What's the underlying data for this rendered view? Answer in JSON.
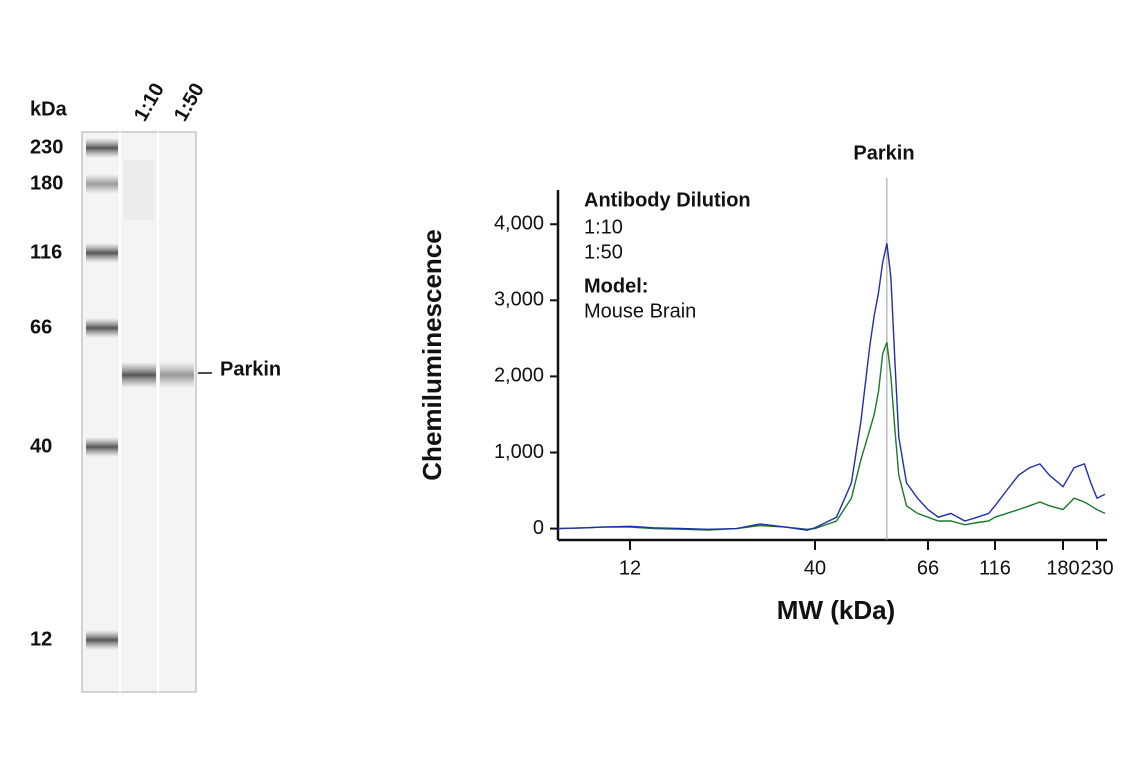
{
  "chart_data": [
    {
      "type": "gel",
      "y_label": "kDa",
      "markers": [
        230,
        180,
        116,
        66,
        40,
        12
      ],
      "lanes": [
        "1:10",
        "1:50"
      ],
      "band_label": "Parkin"
    },
    {
      "type": "line",
      "annotation": "Parkin",
      "marker_x": 55,
      "ylabel": "Chemiluminescence",
      "xlabel": "MW (kDa)",
      "legend_title": "Antibody Dilution",
      "model_label": "Model:",
      "model": "Mouse Brain",
      "x": [
        7.5,
        9,
        10,
        12,
        14,
        17,
        20,
        24,
        28,
        33,
        38,
        40,
        44,
        47,
        49,
        51,
        52,
        53,
        54,
        55,
        56,
        57,
        58,
        60,
        63,
        66,
        72,
        80,
        90,
        100,
        110,
        116,
        125,
        135,
        145,
        155,
        165,
        180,
        195,
        210,
        220,
        230,
        238
      ],
      "series": [
        {
          "name": "1:10",
          "color": "#1f2fa8",
          "values": [
            0,
            10,
            20,
            30,
            10,
            0,
            -10,
            0,
            60,
            20,
            -20,
            10,
            150,
            600,
            1400,
            2400,
            2800,
            3100,
            3500,
            3750,
            3300,
            2200,
            1200,
            600,
            400,
            250,
            150,
            200,
            100,
            150,
            200,
            300,
            500,
            700,
            800,
            850,
            700,
            550,
            800,
            850,
            600,
            400,
            450
          ]
        },
        {
          "name": "1:50",
          "color": "#1a7a2a",
          "values": [
            0,
            10,
            20,
            20,
            0,
            -10,
            -20,
            0,
            40,
            20,
            -10,
            0,
            100,
            400,
            900,
            1300,
            1500,
            1800,
            2300,
            2450,
            2000,
            1300,
            700,
            300,
            200,
            150,
            100,
            100,
            50,
            80,
            100,
            150,
            200,
            250,
            300,
            350,
            300,
            250,
            400,
            350,
            300,
            250,
            200
          ]
        }
      ],
      "xlim": [
        7.5,
        240
      ],
      "xticks": [
        12,
        40,
        66,
        116,
        180,
        230
      ],
      "ylim": [
        -150,
        4450
      ],
      "yticks": [
        0,
        {
          "value": 1000,
          "label": "1,000"
        },
        {
          "value": 2000,
          "label": "2,000"
        },
        {
          "value": 3000,
          "label": "3,000"
        },
        {
          "value": 4000,
          "label": "4,000"
        }
      ]
    }
  ]
}
